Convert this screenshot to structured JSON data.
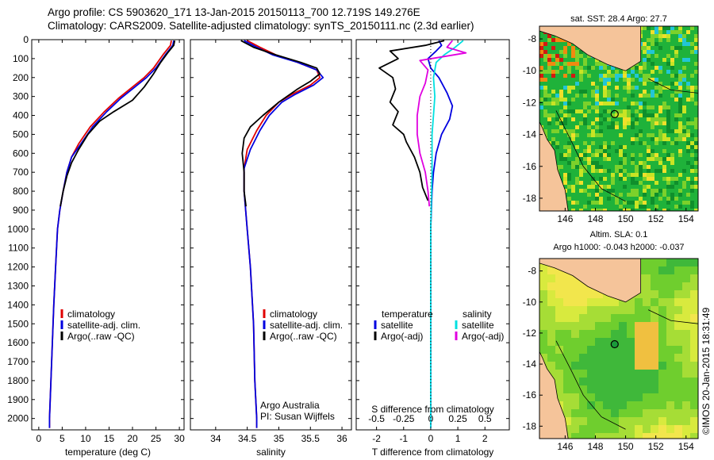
{
  "header": {
    "line1": "Argo profile: CS 5903620_171 13-Jan-2015 20150113_700 12.719S 149.276E",
    "line2": "Climatology: CARS2009. Satellite-adjusted climatology: synTS_20150111.nc (2.3d earlier)"
  },
  "colors": {
    "climatology": "#e00000",
    "satellite": "#0000e0",
    "argo": "#000000",
    "salinity_satellite": "#00e0e0",
    "salinity_argo": "#e000e0",
    "land": "#f5c49a"
  },
  "chart_data": [
    {
      "type": "line",
      "id": "temperature-profile",
      "xlabel": "temperature (deg C)",
      "ylabel": "",
      "xlim": [
        -1.5,
        31
      ],
      "ylim": [
        2060,
        0
      ],
      "xticks": [
        0,
        5,
        10,
        15,
        20,
        25,
        30
      ],
      "yticks": [
        0,
        100,
        200,
        300,
        400,
        500,
        600,
        700,
        800,
        900,
        1000,
        1100,
        1200,
        1300,
        1400,
        1500,
        1600,
        1700,
        1800,
        1900,
        2000
      ],
      "legend": [
        "climatology",
        "satellite-adj. clim.",
        "Argo(..raw -QC)"
      ],
      "series": [
        {
          "name": "climatology",
          "color": "#e00000",
          "points": [
            [
              28.3,
              5
            ],
            [
              28.1,
              30
            ],
            [
              26.5,
              80
            ],
            [
              24.5,
              150
            ],
            [
              22.5,
              200
            ],
            [
              20,
              250
            ],
            [
              17,
              310
            ],
            [
              14,
              380
            ],
            [
              11,
              460
            ],
            [
              8.5,
              550
            ],
            [
              7,
              620
            ],
            [
              6,
              700
            ],
            [
              5.2,
              800
            ],
            [
              4.5,
              900
            ],
            [
              4,
              1000
            ],
            [
              3.6,
              1200
            ],
            [
              3.2,
              1400
            ],
            [
              2.9,
              1600
            ],
            [
              2.6,
              1800
            ],
            [
              2.3,
              2000
            ],
            [
              2.3,
              2050
            ]
          ]
        },
        {
          "name": "satellite-adj. clim.",
          "color": "#0000e0",
          "points": [
            [
              28.8,
              5
            ],
            [
              28.6,
              30
            ],
            [
              27,
              80
            ],
            [
              25,
              150
            ],
            [
              23,
              200
            ],
            [
              20.5,
              250
            ],
            [
              17.5,
              310
            ],
            [
              14.5,
              380
            ],
            [
              11.5,
              460
            ],
            [
              9,
              550
            ],
            [
              7,
              620
            ],
            [
              6,
              700
            ],
            [
              5.2,
              800
            ],
            [
              4.5,
              900
            ],
            [
              4,
              1000
            ],
            [
              3.6,
              1200
            ],
            [
              3.2,
              1400
            ],
            [
              2.9,
              1600
            ],
            [
              2.6,
              1800
            ],
            [
              2.3,
              2000
            ],
            [
              2.3,
              2050
            ]
          ]
        },
        {
          "name": "Argo(..raw -QC)",
          "color": "#000000",
          "points": [
            [
              29,
              5
            ],
            [
              28.8,
              30
            ],
            [
              27.5,
              70
            ],
            [
              26,
              120
            ],
            [
              24.5,
              180
            ],
            [
              22.5,
              250
            ],
            [
              20,
              320
            ],
            [
              16,
              380
            ],
            [
              13,
              430
            ],
            [
              10.5,
              500
            ],
            [
              8.5,
              580
            ],
            [
              7,
              650
            ],
            [
              6,
              720
            ],
            [
              5.2,
              800
            ],
            [
              4.6,
              880
            ]
          ]
        }
      ]
    },
    {
      "type": "line",
      "id": "salinity-profile",
      "xlabel": "salinity",
      "xlim": [
        33.6,
        36.15
      ],
      "ylim": [
        2060,
        0
      ],
      "xticks": [
        34,
        34.5,
        35,
        35.5,
        36
      ],
      "legend": [
        "climatology",
        "satellite-adj. clim.",
        "Argo(..raw -QC)"
      ],
      "series": [
        {
          "name": "climatology",
          "color": "#e00000",
          "points": [
            [
              34.5,
              5
            ],
            [
              34.7,
              40
            ],
            [
              34.95,
              80
            ],
            [
              35.3,
              120
            ],
            [
              35.6,
              160
            ],
            [
              35.65,
              200
            ],
            [
              35.5,
              240
            ],
            [
              35.2,
              290
            ],
            [
              35,
              330
            ],
            [
              34.8,
              400
            ],
            [
              34.65,
              480
            ],
            [
              34.5,
              580
            ],
            [
              34.45,
              680
            ],
            [
              34.45,
              800
            ],
            [
              34.5,
              1000
            ],
            [
              34.55,
              1200
            ],
            [
              34.6,
              1500
            ],
            [
              34.62,
              1800
            ],
            [
              34.65,
              2000
            ],
            [
              34.65,
              2050
            ]
          ]
        },
        {
          "name": "satellite-adj. clim.",
          "color": "#0000e0",
          "points": [
            [
              34.45,
              5
            ],
            [
              34.65,
              40
            ],
            [
              34.9,
              80
            ],
            [
              35.3,
              120
            ],
            [
              35.6,
              160
            ],
            [
              35.7,
              200
            ],
            [
              35.55,
              240
            ],
            [
              35.25,
              290
            ],
            [
              35.05,
              330
            ],
            [
              34.85,
              400
            ],
            [
              34.7,
              480
            ],
            [
              34.55,
              580
            ],
            [
              34.45,
              680
            ],
            [
              34.45,
              800
            ],
            [
              34.5,
              1000
            ],
            [
              34.55,
              1200
            ],
            [
              34.6,
              1500
            ],
            [
              34.62,
              1800
            ],
            [
              34.65,
              2000
            ],
            [
              34.65,
              2050
            ]
          ]
        },
        {
          "name": "Argo(..raw -QC)",
          "color": "#000000",
          "points": [
            [
              34.4,
              5
            ],
            [
              34.6,
              40
            ],
            [
              34.95,
              80
            ],
            [
              35.35,
              120
            ],
            [
              35.6,
              150
            ],
            [
              35.65,
              180
            ],
            [
              35.5,
              220
            ],
            [
              35.3,
              260
            ],
            [
              35,
              330
            ],
            [
              34.75,
              400
            ],
            [
              34.55,
              460
            ],
            [
              34.45,
              520
            ],
            [
              34.42,
              600
            ],
            [
              34.45,
              700
            ],
            [
              34.45,
              800
            ],
            [
              34.48,
              880
            ]
          ]
        }
      ]
    },
    {
      "type": "line",
      "id": "difference-profile",
      "xlabel": "T difference from climatology",
      "xlabel_top": "S difference from climatology",
      "xlim": [
        -2.75,
        2.9
      ],
      "ylim": [
        2060,
        0
      ],
      "xticks": [
        -2,
        -1,
        0,
        1,
        2
      ],
      "xtick_labels": [
        "-2",
        "-1",
        "0",
        "1",
        "2"
      ],
      "sticks": [
        -2,
        -1,
        0,
        1,
        2
      ],
      "stick_labels": [
        "-0.5",
        "-0.25",
        "0",
        "0.25",
        "0.5"
      ],
      "legend_header": [
        "temperature",
        "salinity"
      ],
      "legend": [
        "satellite",
        "Argo(-adj)",
        "satellite",
        "Argo(-adj)"
      ],
      "series": [
        {
          "name": "temperature satellite",
          "color": "#0000e0",
          "points": [
            [
              0.3,
              5
            ],
            [
              0.4,
              30
            ],
            [
              0.2,
              60
            ],
            [
              -0.1,
              100
            ],
            [
              0,
              150
            ],
            [
              0.3,
              200
            ],
            [
              0.6,
              280
            ],
            [
              0.8,
              350
            ],
            [
              0.7,
              420
            ],
            [
              0.4,
              500
            ],
            [
              0.2,
              600
            ],
            [
              0.1,
              700
            ],
            [
              0.05,
              800
            ],
            [
              0,
              1000
            ],
            [
              0,
              1500
            ],
            [
              0,
              2000
            ],
            [
              0,
              2050
            ]
          ]
        },
        {
          "name": "temperature Argo(-adj)",
          "color": "#000000",
          "points": [
            [
              0.5,
              5
            ],
            [
              -0.2,
              30
            ],
            [
              -1.5,
              60
            ],
            [
              -1.2,
              100
            ],
            [
              -1.9,
              150
            ],
            [
              -1.4,
              200
            ],
            [
              -1.3,
              260
            ],
            [
              -1.5,
              330
            ],
            [
              -1.2,
              380
            ],
            [
              -1.4,
              450
            ],
            [
              -1.0,
              500
            ],
            [
              -0.9,
              540
            ],
            [
              -0.6,
              620
            ],
            [
              -0.4,
              700
            ],
            [
              -0.3,
              780
            ],
            [
              -0.1,
              850
            ]
          ]
        },
        {
          "name": "salinity satellite",
          "color": "#00e0e0",
          "points": [
            [
              1.2,
              5
            ],
            [
              0.9,
              40
            ],
            [
              0.5,
              80
            ],
            [
              0.2,
              120
            ],
            [
              0.1,
              200
            ],
            [
              0.15,
              300
            ],
            [
              0.1,
              400
            ],
            [
              0.05,
              500
            ],
            [
              0.05,
              700
            ],
            [
              0,
              1000
            ],
            [
              0,
              1500
            ],
            [
              0,
              2000
            ],
            [
              0,
              2050
            ]
          ]
        },
        {
          "name": "salinity Argo(-adj)",
          "color": "#e000e0",
          "points": [
            [
              0.8,
              5
            ],
            [
              0.6,
              40
            ],
            [
              1.3,
              70
            ],
            [
              -0.4,
              110
            ],
            [
              -0.1,
              160
            ],
            [
              -0.2,
              230
            ],
            [
              -0.4,
              300
            ],
            [
              -0.5,
              400
            ],
            [
              -0.5,
              500
            ],
            [
              -0.4,
              600
            ],
            [
              -0.2,
              700
            ],
            [
              -0.1,
              800
            ],
            [
              -0.05,
              880
            ]
          ]
        }
      ],
      "annotation_lines": [
        "Argo Australia",
        "PI: Susan Wijffels"
      ]
    },
    {
      "type": "heatmap",
      "id": "sst-map",
      "title": "sat. SST: 28.4  Argo: 27.7",
      "xlim": [
        144.3,
        154.8
      ],
      "ylim": [
        -18.8,
        -7.2
      ],
      "xticks": [
        146,
        148,
        150,
        152,
        154
      ],
      "yticks": [
        -8,
        -10,
        -12,
        -14,
        -16,
        -18
      ],
      "marker": {
        "lon": 149.276,
        "lat": -12.719
      }
    },
    {
      "type": "heatmap",
      "id": "sla-map",
      "title": "Altim. SLA: 0.1",
      "subtitle": "Argo h1000: -0.043  h2000: -0.037",
      "xlim": [
        144.3,
        154.8
      ],
      "ylim": [
        -18.8,
        -7.2
      ],
      "xticks": [
        146,
        148,
        150,
        152,
        154
      ],
      "yticks": [
        -8,
        -10,
        -12,
        -14,
        -16,
        -18
      ],
      "marker": {
        "lon": 149.276,
        "lat": -12.719
      }
    }
  ],
  "footer": {
    "stamp": "©IMOS 20-Jan-2015 18:31:49"
  }
}
